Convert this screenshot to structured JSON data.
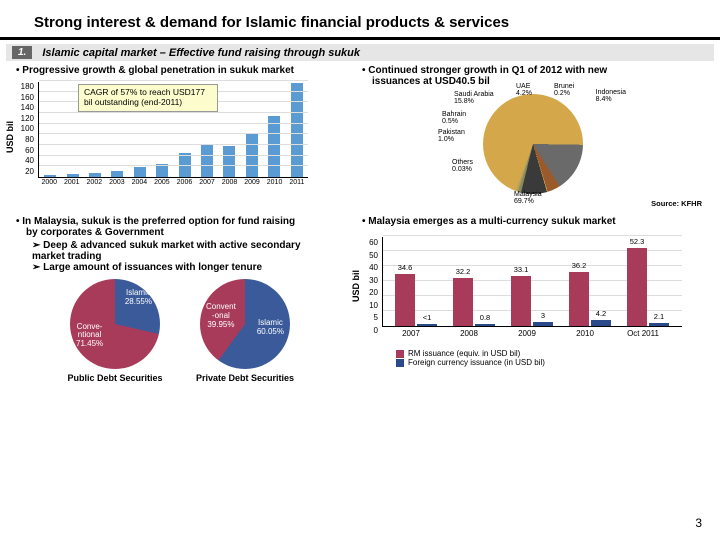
{
  "title": "Strong interest & demand for Islamic financial products & services",
  "section": {
    "num": "1.",
    "title": "Islamic capital market – Effective fund raising through sukuk"
  },
  "bullets": {
    "tl": "• Progressive growth & global penetration in sukuk market",
    "tr1": "• Continued stronger growth in Q1 of 2012 with new",
    "tr2": "issuances at USD40.5 bil",
    "bl1": "• In Malaysia, sukuk is the preferred option for fund raising",
    "bl2": "by corporates & Government",
    "bl3": "Deep & advanced sukuk market with active secondary market trading",
    "bl4": "Large amount of issuances with longer tenure",
    "br": "• Malaysia emerges as a multi-currency sukuk market"
  },
  "callout": {
    "l1": "CAGR of 57% to reach USD177",
    "l2": "bil outstanding (end-2011)"
  },
  "bar_chart": {
    "ylabel": "USD bil",
    "yticks": [
      "180",
      "160",
      "140",
      "120",
      "100",
      "80",
      "60",
      "40",
      "20"
    ],
    "years": [
      "2000",
      "2001",
      "2002",
      "2003",
      "2004",
      "2005",
      "2006",
      "2007",
      "2008",
      "2009",
      "2010",
      "2011"
    ],
    "values": [
      3,
      5,
      7,
      12,
      18,
      25,
      45,
      60,
      58,
      80,
      115,
      177
    ],
    "ymax": 180,
    "bar_color": "#5a9bd4",
    "grid_color": "#dddddd"
  },
  "pie": {
    "labels": {
      "malaysia": "Malaysia\n69.7%",
      "saudi": "Saudi Arabia\n15.8%",
      "uae": "UAE\n4.2%",
      "brunei": "Brunei\n0.2%",
      "indonesia": "Indonesia\n8.4%",
      "pakistan": "Pakistan\n1.0%",
      "bahrain": "Bahrain\n0.5%",
      "others": "Others\n0.03%"
    },
    "colors": {
      "malaysia": "#d4a84a",
      "saudi": "#6a6a6a",
      "uae": "#9a5a2a",
      "brunei": "#e0c060",
      "indonesia": "#3a3a3a",
      "pakistan": "#8a8a5a",
      "bahrain": "#b0a060"
    }
  },
  "source": "Source: KFHR",
  "dual_chart": {
    "ylabel": "USD bil",
    "yticks": [
      "60",
      "50",
      "40",
      "30",
      "20",
      "10",
      "5",
      "0"
    ],
    "ymax": 60,
    "cats": [
      "2007",
      "2008",
      "2009",
      "2010",
      "Oct 2011"
    ],
    "rm": [
      34.6,
      32.2,
      33.1,
      36.2,
      52.3
    ],
    "fc": [
      null,
      0.8,
      3.0,
      4.2,
      2.1
    ],
    "rm_label_extra": "<1",
    "rm_color": "#a83a5a",
    "fc_color": "#2a4a8a",
    "legend_rm": "RM issuance (equiv. in USD bil)",
    "legend_fc": "Foreign currency issuance (in USD bil)"
  },
  "donuts": {
    "public": {
      "caption": "Public Debt Securities",
      "islamic": "Islamic\n28.55%",
      "conv": "Conve-\nntional\n71.45%",
      "islamic_pct": 28.55,
      "colors": {
        "islamic": "#3a5a9a",
        "conv": "#a83a5a"
      }
    },
    "private": {
      "caption": "Private Debt Securities",
      "islamic": "Islamic\n60.05%",
      "conv": "Convent\n-onal\n39.95%",
      "islamic_pct": 60.05,
      "colors": {
        "islamic": "#3a5a9a",
        "conv": "#a83a5a"
      }
    }
  },
  "page": "3"
}
